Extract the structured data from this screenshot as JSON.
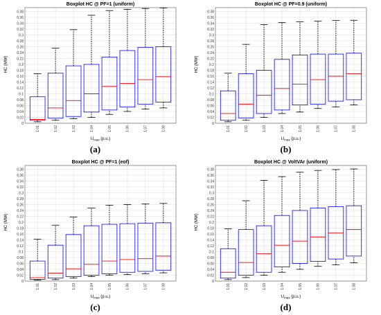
{
  "figure": {
    "captions": [
      "(a)",
      "(b)",
      "(c)",
      "(d)"
    ]
  },
  "chart_data": [
    {
      "type": "boxplot",
      "title": "Boxplot HC @ PF=1  (uniform)",
      "ylabel": "HC (MW)",
      "xlabel_main": "U",
      "xlabel_sub": "max",
      "xlabel_unit": " (p.u.)",
      "categories": [
        "1.01",
        "1.02",
        "1.03",
        "1.04",
        "1.05",
        "1.06",
        "1.07",
        "1.08"
      ],
      "ylim": [
        0,
        0.4
      ],
      "yticks": [
        "0",
        "0.02",
        "0.04",
        "0.06",
        "0.08",
        "0.1",
        "0.12",
        "0.14",
        "0.16",
        "0.18",
        "0.2",
        "0.22",
        "0.24",
        "0.26",
        "0.28",
        "0.3",
        "0.32",
        "0.34",
        "0.36",
        "0.38",
        "0.4"
      ],
      "grid": true,
      "colors": {
        "box": "#0000ff",
        "median": "#ff0000",
        "whisker": "#000000"
      },
      "boxes": [
        {
          "min": 0.005,
          "q1": 0.01,
          "median": 0.013,
          "q3": 0.09,
          "max": 0.168
        },
        {
          "min": 0.01,
          "q1": 0.017,
          "median": 0.052,
          "q3": 0.17,
          "max": 0.255
        },
        {
          "min": 0.015,
          "q1": 0.023,
          "median": 0.077,
          "q3": 0.195,
          "max": 0.318
        },
        {
          "min": 0.02,
          "q1": 0.038,
          "median": 0.1,
          "q3": 0.2,
          "max": 0.367
        },
        {
          "min": 0.03,
          "q1": 0.045,
          "median": 0.125,
          "q3": 0.225,
          "max": 0.383
        },
        {
          "min": 0.04,
          "q1": 0.055,
          "median": 0.135,
          "q3": 0.247,
          "max": 0.387
        },
        {
          "min": 0.048,
          "q1": 0.065,
          "median": 0.148,
          "q3": 0.258,
          "max": 0.39
        },
        {
          "min": 0.052,
          "q1": 0.072,
          "median": 0.158,
          "q3": 0.26,
          "max": 0.392
        }
      ]
    },
    {
      "type": "boxplot",
      "title": "Boxplot HC @ PF=0.9  (uniform)",
      "ylabel": "HC (MW)",
      "xlabel_main": "U",
      "xlabel_sub": "max",
      "xlabel_unit": " (p.u.)",
      "categories": [
        "1.01",
        "1.02",
        "1.03",
        "1.04",
        "1.05",
        "1.06",
        "1.07",
        "1.08"
      ],
      "ylim": [
        0,
        0.4
      ],
      "yticks": [
        "0",
        "0.02",
        "0.04",
        "0.06",
        "0.08",
        "0.1",
        "0.12",
        "0.14",
        "0.16",
        "0.18",
        "0.2",
        "0.22",
        "0.24",
        "0.26",
        "0.28",
        "0.3",
        "0.32",
        "0.34",
        "0.36",
        "0.38",
        "0.4"
      ],
      "grid": true,
      "colors": {
        "box": "#0000ff",
        "median": "#ff0000",
        "whisker": "#000000"
      },
      "boxes": [
        {
          "min": 0.005,
          "q1": 0.01,
          "median": 0.033,
          "q3": 0.11,
          "max": 0.17
        },
        {
          "min": 0.01,
          "q1": 0.018,
          "median": 0.065,
          "q3": 0.168,
          "max": 0.268
        },
        {
          "min": 0.02,
          "q1": 0.033,
          "median": 0.095,
          "q3": 0.18,
          "max": 0.335
        },
        {
          "min": 0.033,
          "q1": 0.045,
          "median": 0.118,
          "q3": 0.217,
          "max": 0.342
        },
        {
          "min": 0.038,
          "q1": 0.062,
          "median": 0.133,
          "q3": 0.232,
          "max": 0.345
        },
        {
          "min": 0.05,
          "q1": 0.065,
          "median": 0.148,
          "q3": 0.235,
          "max": 0.347
        },
        {
          "min": 0.055,
          "q1": 0.075,
          "median": 0.16,
          "q3": 0.235,
          "max": 0.349
        },
        {
          "min": 0.062,
          "q1": 0.08,
          "median": 0.168,
          "q3": 0.238,
          "max": 0.35
        }
      ]
    },
    {
      "type": "boxplot",
      "title": "Boxplot HC @ PF=1  (eof)",
      "ylabel": "HC (MW)",
      "xlabel_main": "U",
      "xlabel_sub": "max",
      "xlabel_unit": " (p.u.)",
      "categories": [
        "1.01",
        "1.02",
        "1.03",
        "1.04",
        "1.05",
        "1.06",
        "1.07",
        "1.08"
      ],
      "ylim": [
        0,
        0.4
      ],
      "yticks": [
        "0",
        "0.02",
        "0.04",
        "0.06",
        "0.08",
        "0.1",
        "0.12",
        "0.14",
        "0.16",
        "0.18",
        "0.2",
        "0.22",
        "0.24",
        "0.26",
        "0.28",
        "0.3",
        "0.32",
        "0.34",
        "0.36",
        "0.38",
        "0.4"
      ],
      "grid": true,
      "colors": {
        "box": "#0000ff",
        "median": "#ff0000",
        "whisker": "#000000"
      },
      "boxes": [
        {
          "min": 0.003,
          "q1": 0.006,
          "median": 0.012,
          "q3": 0.068,
          "max": 0.142
        },
        {
          "min": 0.005,
          "q1": 0.01,
          "median": 0.027,
          "q3": 0.122,
          "max": 0.19
        },
        {
          "min": 0.01,
          "q1": 0.015,
          "median": 0.042,
          "q3": 0.158,
          "max": 0.218
        },
        {
          "min": 0.015,
          "q1": 0.02,
          "median": 0.057,
          "q3": 0.188,
          "max": 0.248
        },
        {
          "min": 0.02,
          "q1": 0.025,
          "median": 0.068,
          "q3": 0.193,
          "max": 0.258
        },
        {
          "min": 0.022,
          "q1": 0.03,
          "median": 0.073,
          "q3": 0.195,
          "max": 0.26
        },
        {
          "min": 0.025,
          "q1": 0.033,
          "median": 0.076,
          "q3": 0.197,
          "max": 0.262
        },
        {
          "min": 0.028,
          "q1": 0.037,
          "median": 0.085,
          "q3": 0.198,
          "max": 0.264
        }
      ]
    },
    {
      "type": "boxplot",
      "title": "Boxplot HC @ VoltVAr (uniform)",
      "ylabel": "HC (MW)",
      "xlabel_main": "U",
      "xlabel_sub": "max",
      "xlabel_unit": " (p.u.)",
      "categories": [
        "1.01",
        "1.02",
        "1.03",
        "1.04",
        "1.05",
        "1.06",
        "1.07",
        "1.08"
      ],
      "ylim": [
        0,
        0.4
      ],
      "yticks": [
        "0",
        "0.02",
        "0.04",
        "0.06",
        "0.08",
        "0.1",
        "0.12",
        "0.14",
        "0.16",
        "0.18",
        "0.2",
        "0.22",
        "0.24",
        "0.26",
        "0.28",
        "0.3",
        "0.32",
        "0.34",
        "0.36",
        "0.38",
        "0.4"
      ],
      "grid": true,
      "colors": {
        "box": "#0000ff",
        "median": "#ff0000",
        "whisker": "#000000"
      },
      "boxes": [
        {
          "min": 0.005,
          "q1": 0.01,
          "median": 0.03,
          "q3": 0.11,
          "max": 0.178
        },
        {
          "min": 0.012,
          "q1": 0.02,
          "median": 0.063,
          "q3": 0.175,
          "max": 0.273
        },
        {
          "min": 0.02,
          "q1": 0.03,
          "median": 0.093,
          "q3": 0.188,
          "max": 0.342
        },
        {
          "min": 0.03,
          "q1": 0.048,
          "median": 0.122,
          "q3": 0.223,
          "max": 0.355
        },
        {
          "min": 0.04,
          "q1": 0.06,
          "median": 0.136,
          "q3": 0.24,
          "max": 0.37
        },
        {
          "min": 0.05,
          "q1": 0.067,
          "median": 0.15,
          "q3": 0.248,
          "max": 0.376
        },
        {
          "min": 0.055,
          "q1": 0.075,
          "median": 0.164,
          "q3": 0.253,
          "max": 0.379
        },
        {
          "min": 0.062,
          "q1": 0.085,
          "median": 0.175,
          "q3": 0.256,
          "max": 0.381
        }
      ]
    }
  ]
}
